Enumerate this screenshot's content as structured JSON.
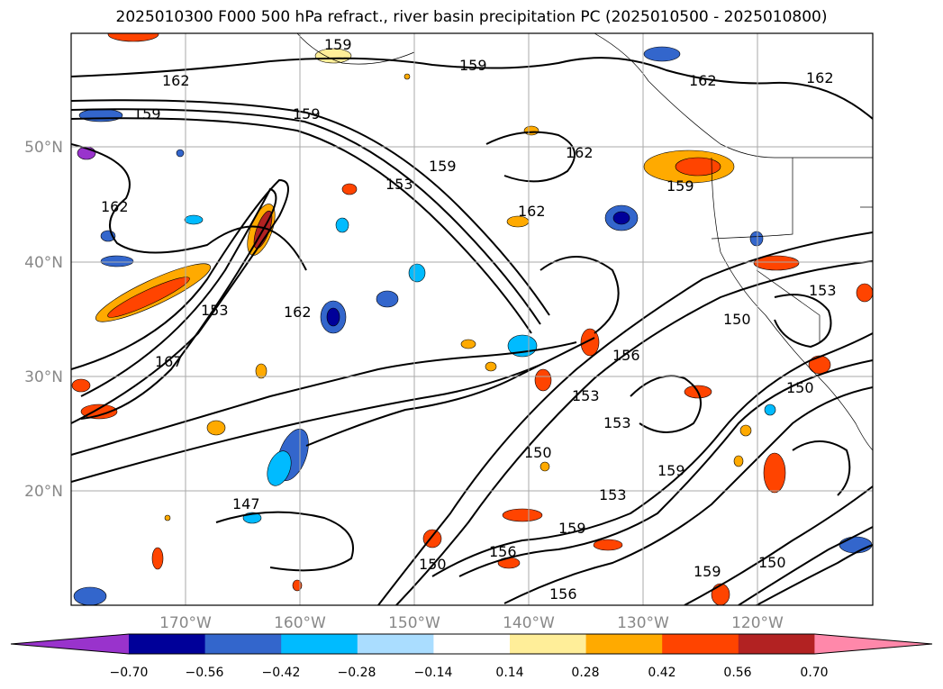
{
  "title": "2025010300 F000 500 hPa refract., river basin precipitation PC (2025010500 - 2025010800)",
  "axes": {
    "lon_ticks": [
      "170°W",
      "160°W",
      "150°W",
      "140°W",
      "130°W",
      "120°W"
    ],
    "lat_ticks": [
      "20°N",
      "30°N",
      "40°N",
      "50°N"
    ]
  },
  "colorbar": {
    "ticks": [
      "−0.70",
      "−0.56",
      "−0.42",
      "−0.28",
      "−0.14",
      "0.14",
      "0.28",
      "0.42",
      "0.56",
      "0.70"
    ],
    "colors": {
      "under": "#9933cc",
      "bins": [
        "#000099",
        "#3366cc",
        "#00bbff",
        "#aaddff",
        "#ffffff",
        "#ffee99",
        "#ffaa00",
        "#ff4400",
        "#b22222"
      ],
      "over": "#ff88aa"
    }
  },
  "contour_labels": [
    "159",
    "162",
    "159",
    "162",
    "159",
    "162",
    "159",
    "162",
    "153",
    "159",
    "162",
    "162",
    "153",
    "162",
    "167",
    "156",
    "153",
    "153",
    "150",
    "150",
    "150",
    "159",
    "153",
    "159",
    "147",
    "156",
    "150",
    "156",
    "150",
    "159",
    "153",
    "159"
  ]
}
